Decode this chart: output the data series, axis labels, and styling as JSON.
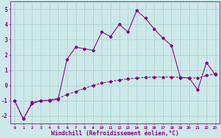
{
  "xlabel": "Windchill (Refroidissement éolien,°C)",
  "background_color": "#cce8e8",
  "line_color": "#880088",
  "grid_color": "#aacccc",
  "x_hours": [
    0,
    1,
    2,
    3,
    4,
    5,
    6,
    7,
    8,
    9,
    10,
    11,
    12,
    13,
    14,
    15,
    16,
    17,
    18,
    19,
    20,
    21,
    22,
    23
  ],
  "temp_values": [
    -1.0,
    -2.2,
    -1.2,
    -1.0,
    -1.0,
    -0.9,
    1.7,
    2.5,
    2.4,
    2.3,
    3.5,
    3.2,
    4.0,
    3.5,
    4.9,
    4.4,
    3.7,
    3.1,
    2.6,
    0.5,
    0.5,
    -0.3,
    1.5,
    0.7
  ],
  "windchill_values": [
    -1.0,
    -2.2,
    -1.1,
    -1.0,
    -0.95,
    -0.85,
    -0.6,
    -0.4,
    -0.2,
    0.0,
    0.15,
    0.25,
    0.35,
    0.42,
    0.48,
    0.52,
    0.55,
    0.55,
    0.55,
    0.52,
    0.5,
    0.48,
    0.65,
    0.75
  ],
  "ylim": [
    -2.5,
    5.5
  ],
  "yticks": [
    -2,
    -1,
    0,
    1,
    2,
    3,
    4,
    5
  ],
  "xlim": [
    -0.5,
    23.5
  ],
  "xtick_fontsize": 4.2,
  "ytick_fontsize": 5.5,
  "xlabel_fontsize": 6.0,
  "linewidth": 0.8,
  "markersize": 2.0
}
